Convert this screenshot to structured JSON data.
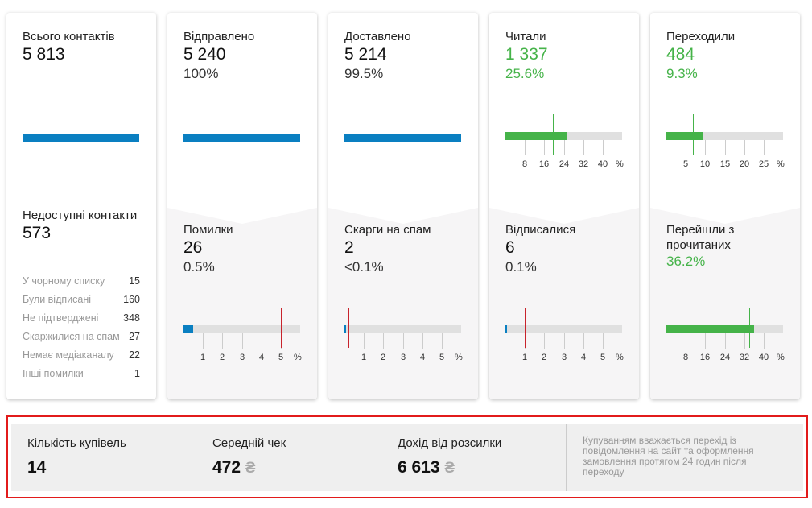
{
  "cards": [
    {
      "title": "Всього контактів",
      "value": "5 813",
      "bottom_title": "Недоступні контакти",
      "bottom_value": "573",
      "errors": [
        {
          "label": "У чорному списку",
          "value": "15"
        },
        {
          "label": "Були відписані",
          "value": "160"
        },
        {
          "label": "Не підтверджені",
          "value": "348"
        },
        {
          "label": "Скаржилися на спам",
          "value": "27"
        },
        {
          "label": "Немає медіаканалу",
          "value": "22"
        },
        {
          "label": "Інші помилки",
          "value": "1"
        }
      ]
    },
    {
      "title": "Відправлено",
      "value": "5 240",
      "pct": "100%",
      "bottom_title": "Помилки",
      "bottom_value": "26",
      "bottom_pct": "0.5%"
    },
    {
      "title": "Доставлено",
      "value": "5 214",
      "pct": "99.5%",
      "bottom_title": "Скарги на спам",
      "bottom_value": "2",
      "bottom_pct": "<0.1%"
    },
    {
      "title": "Читали",
      "value": "1 337",
      "pct": "25.6%",
      "bottom_title": "Відписалися",
      "bottom_value": "6",
      "bottom_pct": "0.1%"
    },
    {
      "title": "Переходили",
      "value": "484",
      "pct": "9.3%",
      "bottom_title": "Перейшли з прочитаних",
      "bottom_pct": "36.2%"
    }
  ],
  "gauges": {
    "opened": {
      "max": 48,
      "value": 25.6,
      "marker": 19.5,
      "ticks": [
        "8",
        "16",
        "24",
        "32",
        "40"
      ],
      "unit": "%",
      "color": "#45b349",
      "marker_color": "#45b349"
    },
    "clicked": {
      "max": 30,
      "value": 9.3,
      "marker": 6.8,
      "ticks": [
        "5",
        "10",
        "15",
        "20",
        "25"
      ],
      "unit": "%",
      "color": "#45b349",
      "marker_color": "#45b349"
    },
    "errors": {
      "max": 6,
      "value": 0.5,
      "marker": 5,
      "ticks": [
        "1",
        "2",
        "3",
        "4",
        "5"
      ],
      "unit": "%",
      "color": "#0a7fc1",
      "marker_color": "#c8232c"
    },
    "spam": {
      "max": 6,
      "value": 0.05,
      "marker": 0.2,
      "ticks": [
        "1",
        "2",
        "3",
        "4",
        "5"
      ],
      "unit": "%",
      "color": "#0a7fc1",
      "marker_color": "#c8232c"
    },
    "unsub": {
      "max": 6,
      "value": 0.1,
      "marker": 1,
      "ticks": [
        "1",
        "2",
        "3",
        "4",
        "5"
      ],
      "unit": "%",
      "color": "#0a7fc1",
      "marker_color": "#c8232c"
    },
    "ctor": {
      "max": 48,
      "value": 36.2,
      "marker": 34,
      "ticks": [
        "8",
        "16",
        "24",
        "32",
        "40"
      ],
      "unit": "%",
      "color": "#45b349",
      "marker_color": "#45b349"
    }
  },
  "footer": {
    "purchases_label": "Кількість купівель",
    "purchases": "14",
    "avg_label": "Середній чек",
    "avg": "472",
    "revenue_label": "Дохід від розсилки",
    "revenue": "6 613",
    "currency": "₴",
    "note": "Купуванням вважається перехід із повідомлення на сайт та оформлення замовлення протягом 24 годин після переходу"
  }
}
